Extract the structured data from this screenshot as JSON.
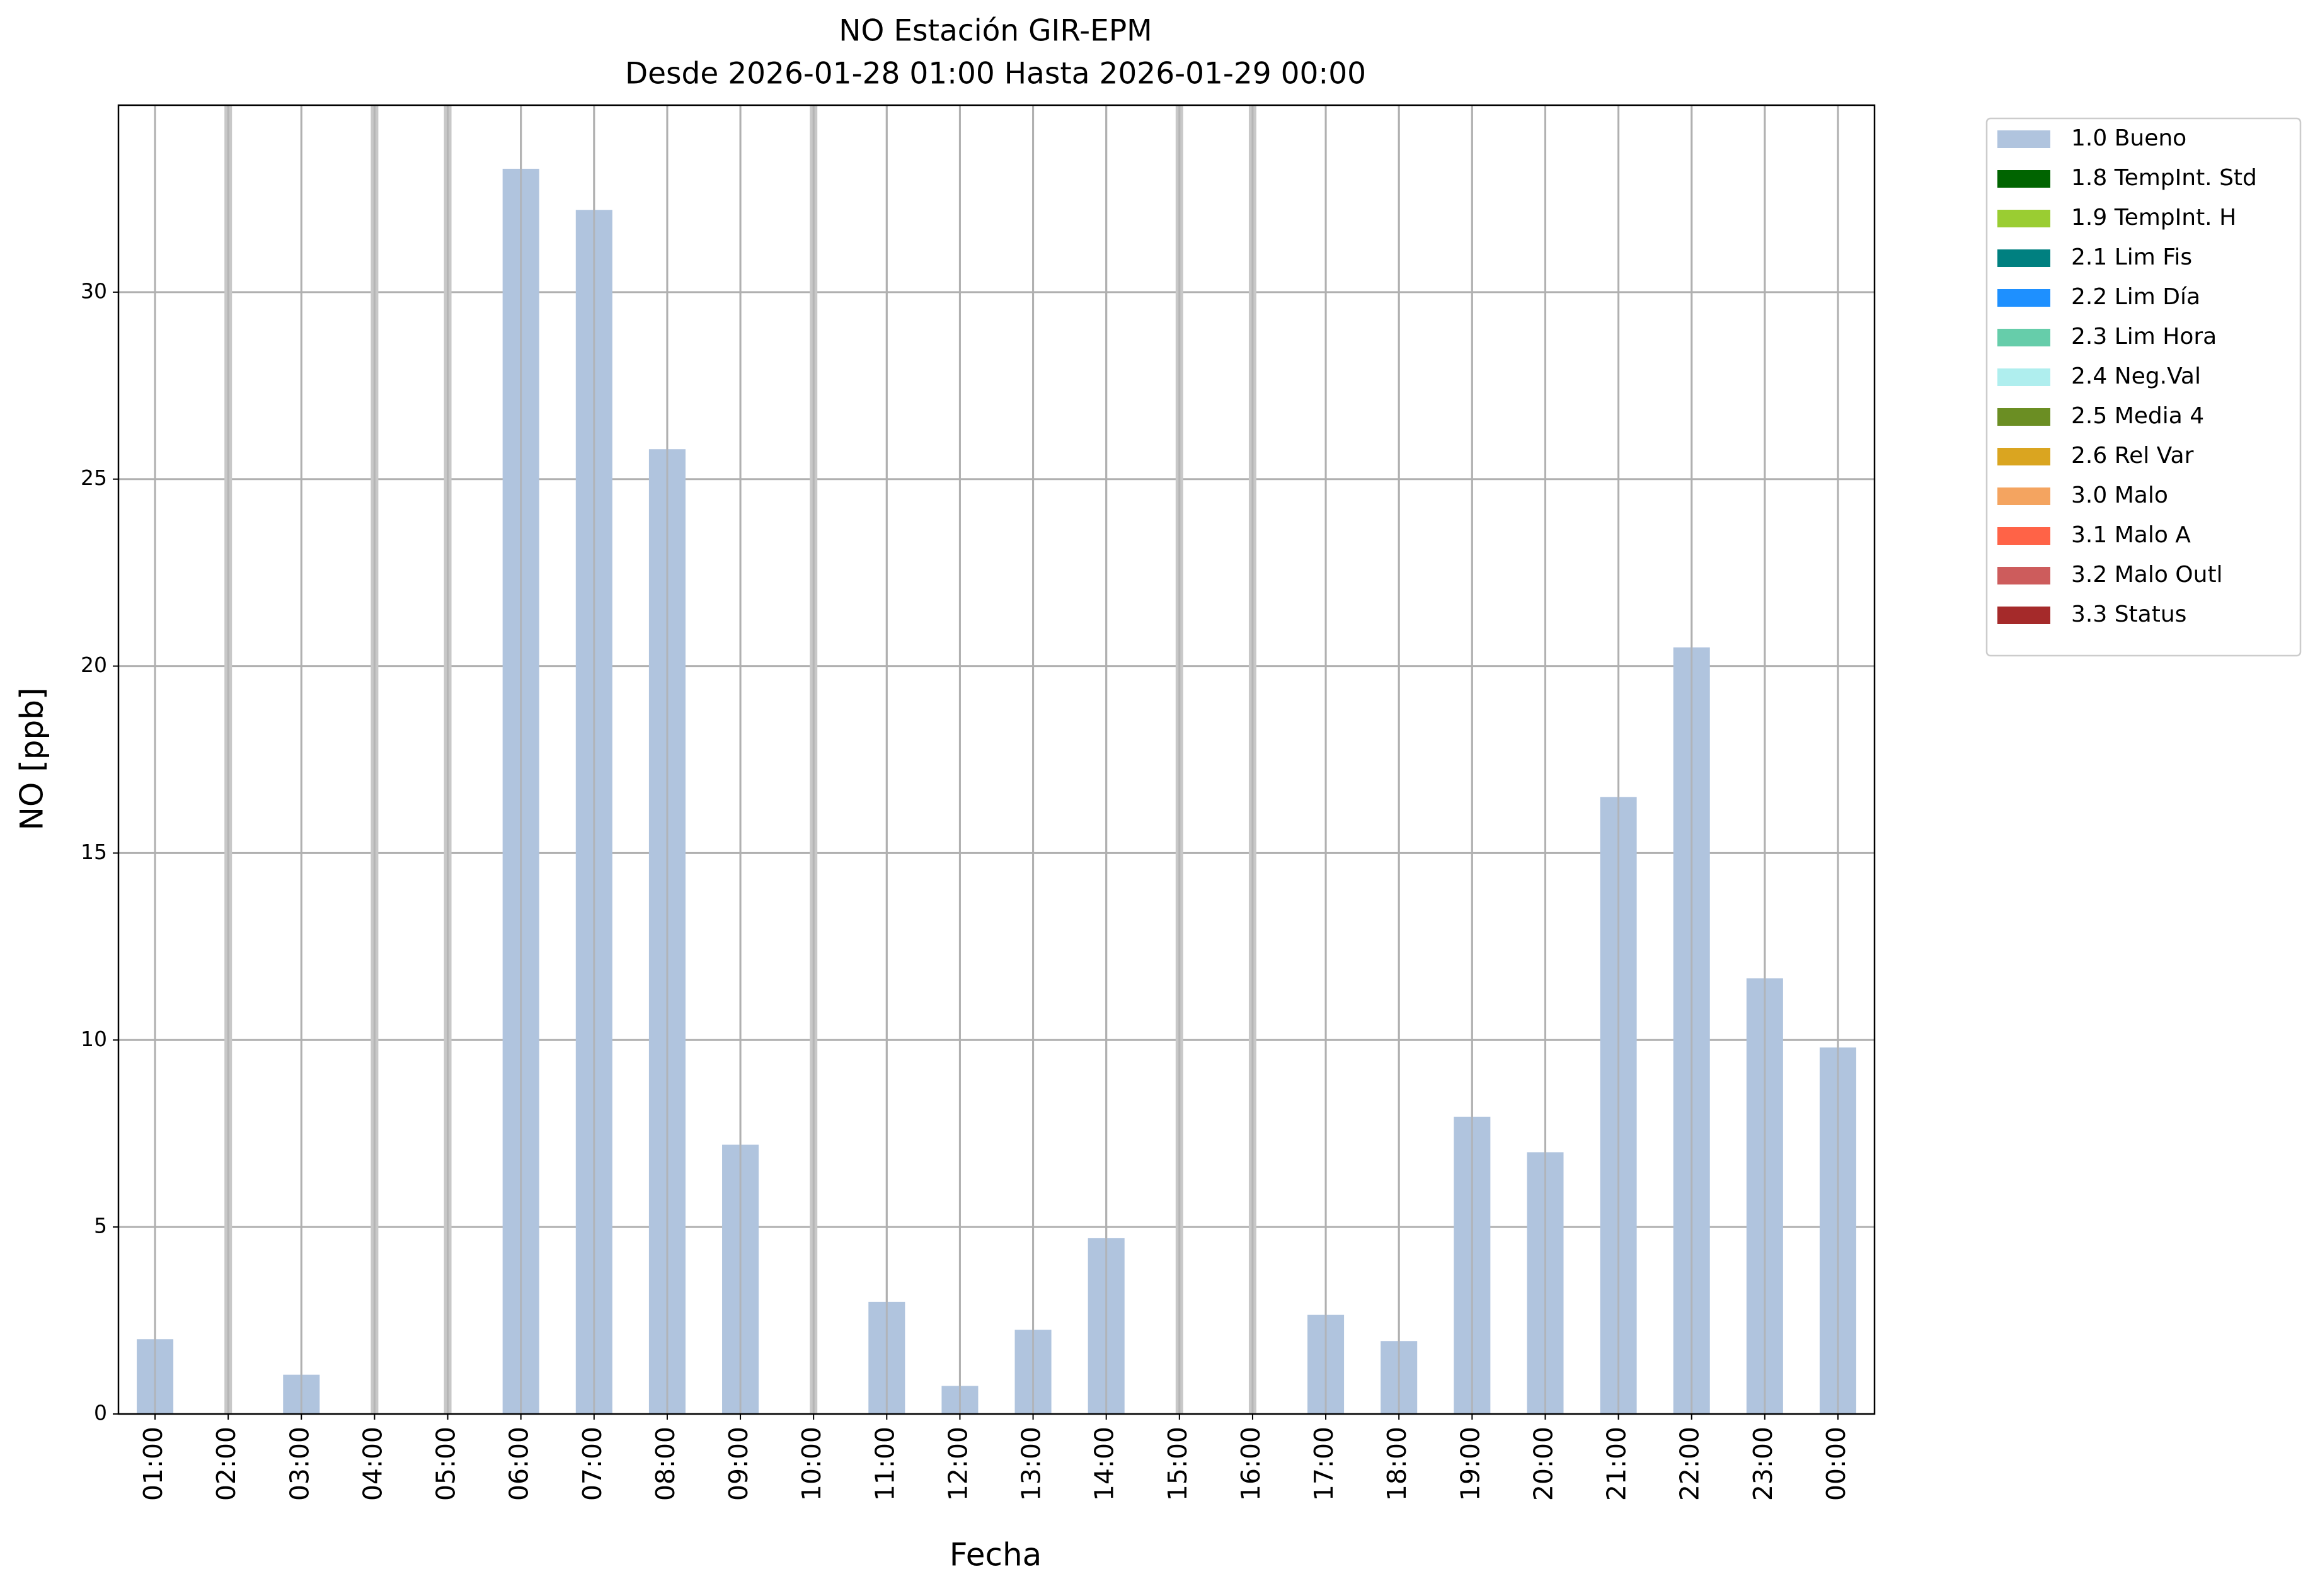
{
  "chart_data": {
    "type": "bar",
    "stacked": true,
    "title": "NO Estación GIR-EPM",
    "subtitle": "Desde 2026-01-28 01:00 Hasta 2026-01-29 00:00",
    "x_label": "Fecha",
    "y_label": "NO [ppb]",
    "categories": [
      "01:00",
      "02:00",
      "03:00",
      "04:00",
      "05:00",
      "06:00",
      "07:00",
      "08:00",
      "09:00",
      "10:00",
      "11:00",
      "12:00",
      "13:00",
      "14:00",
      "15:00",
      "16:00",
      "17:00",
      "18:00",
      "19:00",
      "20:00",
      "21:00",
      "22:00",
      "23:00",
      "00:00"
    ],
    "series": [
      {
        "name": "1.0 Bueno",
        "color": "#b0c4de",
        "values": [
          2.0,
          null,
          1.05,
          null,
          null,
          33.3,
          32.2,
          25.8,
          7.2,
          null,
          3.0,
          0.75,
          2.25,
          4.7,
          null,
          null,
          2.65,
          1.95,
          7.95,
          7.0,
          16.5,
          20.5,
          11.65,
          9.8
        ]
      },
      {
        "name": "1.8 TempInt. Std",
        "color": "#006400",
        "values": [
          null,
          null,
          null,
          null,
          null,
          null,
          null,
          null,
          null,
          null,
          null,
          null,
          null,
          null,
          null,
          null,
          null,
          null,
          null,
          null,
          null,
          null,
          null,
          null
        ]
      },
      {
        "name": "1.9 TempInt. H",
        "color": "#9acd32",
        "values": [
          null,
          null,
          null,
          null,
          null,
          null,
          null,
          null,
          null,
          null,
          null,
          null,
          null,
          null,
          null,
          null,
          null,
          null,
          null,
          null,
          null,
          null,
          null,
          null
        ]
      },
      {
        "name": "2.1 Lim Fis",
        "color": "#008080",
        "values": [
          null,
          null,
          null,
          null,
          null,
          null,
          null,
          null,
          null,
          null,
          null,
          null,
          null,
          null,
          null,
          null,
          null,
          null,
          null,
          null,
          null,
          null,
          null,
          null
        ]
      },
      {
        "name": "2.2 Lim Día",
        "color": "#1e90ff",
        "values": [
          null,
          null,
          null,
          null,
          null,
          null,
          null,
          null,
          null,
          null,
          null,
          null,
          null,
          null,
          null,
          null,
          null,
          null,
          null,
          null,
          null,
          null,
          null,
          null
        ]
      },
      {
        "name": "2.3 Lim Hora",
        "color": "#66cdaa",
        "values": [
          null,
          null,
          null,
          null,
          null,
          null,
          null,
          null,
          null,
          null,
          null,
          null,
          null,
          null,
          null,
          null,
          null,
          null,
          null,
          null,
          null,
          null,
          null,
          null
        ]
      },
      {
        "name": "2.4 Neg.Val",
        "color": "#afeeee",
        "values": [
          null,
          null,
          null,
          null,
          null,
          null,
          null,
          null,
          null,
          null,
          null,
          null,
          null,
          null,
          null,
          null,
          null,
          null,
          null,
          null,
          null,
          null,
          null,
          null
        ]
      },
      {
        "name": "2.5 Media 4",
        "color": "#6b8e23",
        "values": [
          null,
          null,
          null,
          null,
          null,
          null,
          null,
          null,
          null,
          null,
          null,
          null,
          null,
          null,
          null,
          null,
          null,
          null,
          null,
          null,
          null,
          null,
          null,
          null
        ]
      },
      {
        "name": "2.6 Rel Var",
        "color": "#daa520",
        "values": [
          null,
          null,
          null,
          null,
          null,
          null,
          null,
          null,
          null,
          null,
          null,
          null,
          null,
          null,
          null,
          null,
          null,
          null,
          null,
          null,
          null,
          null,
          null,
          null
        ]
      },
      {
        "name": "3.0 Malo",
        "color": "#f4a460",
        "values": [
          null,
          null,
          null,
          null,
          null,
          null,
          null,
          null,
          null,
          null,
          null,
          null,
          null,
          null,
          null,
          null,
          null,
          null,
          null,
          null,
          null,
          null,
          null,
          null
        ]
      },
      {
        "name": "3.1 Malo A",
        "color": "#ff6347",
        "values": [
          null,
          null,
          null,
          null,
          null,
          null,
          null,
          null,
          null,
          null,
          null,
          null,
          null,
          null,
          null,
          null,
          null,
          null,
          null,
          null,
          null,
          null,
          null,
          null
        ]
      },
      {
        "name": "3.2 Malo Outl",
        "color": "#cd5c5c",
        "values": [
          null,
          null,
          null,
          null,
          null,
          null,
          null,
          null,
          null,
          null,
          null,
          null,
          null,
          null,
          null,
          null,
          null,
          null,
          null,
          null,
          null,
          null,
          null,
          null
        ]
      },
      {
        "name": "3.3 Status",
        "color": "#a52a2a",
        "values": [
          null,
          null,
          null,
          null,
          null,
          null,
          null,
          null,
          null,
          null,
          null,
          null,
          null,
          null,
          null,
          null,
          null,
          null,
          null,
          null,
          null,
          null,
          null,
          null
        ]
      }
    ],
    "ylim": [
      0,
      35
    ],
    "yticks": [
      0,
      5,
      10,
      15,
      20,
      25,
      30
    ],
    "grid": true,
    "legend": "outside upper right"
  }
}
